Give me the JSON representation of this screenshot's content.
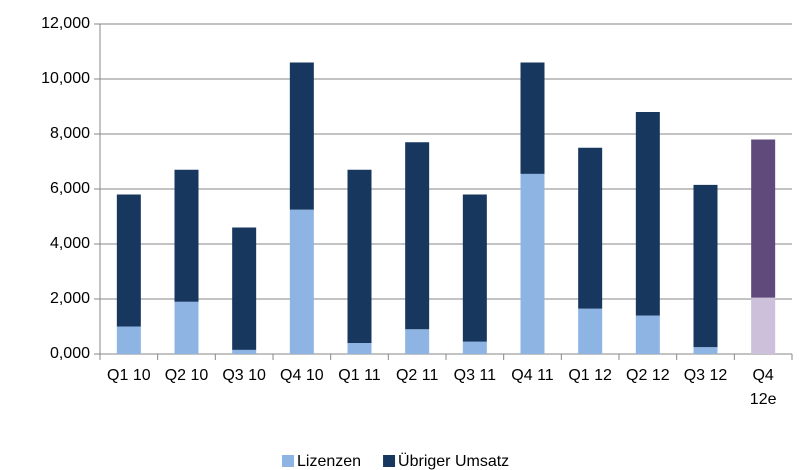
{
  "chart_data": {
    "type": "stacked_bar",
    "categories": [
      "Q1 10",
      "Q2 10",
      "Q3 10",
      "Q4 10",
      "Q1 11",
      "Q2 11",
      "Q3 11",
      "Q4 11",
      "Q1 12",
      "Q2 12",
      "Q3 12",
      "Q4 12e"
    ],
    "series": [
      {
        "name": "Lizenzen",
        "color": "#8db4e2",
        "colors": [
          "#8db4e2",
          "#8db4e2",
          "#8db4e2",
          "#8db4e2",
          "#8db4e2",
          "#8db4e2",
          "#8db4e2",
          "#8db4e2",
          "#8db4e2",
          "#8db4e2",
          "#8db4e2",
          "#ccc0da"
        ],
        "values": [
          1000,
          1900,
          150,
          5250,
          400,
          900,
          450,
          6550,
          1650,
          1400,
          250,
          2050
        ]
      },
      {
        "name": "Übriger Umsatz",
        "color": "#17375e",
        "colors": [
          "#17375e",
          "#17375e",
          "#17375e",
          "#17375e",
          "#17375e",
          "#17375e",
          "#17375e",
          "#17375e",
          "#17375e",
          "#17375e",
          "#17375e",
          "#604a7b"
        ],
        "values": [
          4800,
          4800,
          4450,
          5350,
          6300,
          6800,
          5350,
          4050,
          5850,
          7400,
          5900,
          5750
        ]
      }
    ],
    "ylim": [
      0,
      12000
    ],
    "yticks": [
      {
        "value": 0,
        "label": "0,000"
      },
      {
        "value": 2000,
        "label": "2,000"
      },
      {
        "value": 4000,
        "label": "4,000"
      },
      {
        "value": 6000,
        "label": "6,000"
      },
      {
        "value": 8000,
        "label": "8,000"
      },
      {
        "value": 10000,
        "label": "10,000"
      },
      {
        "value": 12000,
        "label": "12,000"
      }
    ],
    "grid": true,
    "legend": "bottom"
  }
}
